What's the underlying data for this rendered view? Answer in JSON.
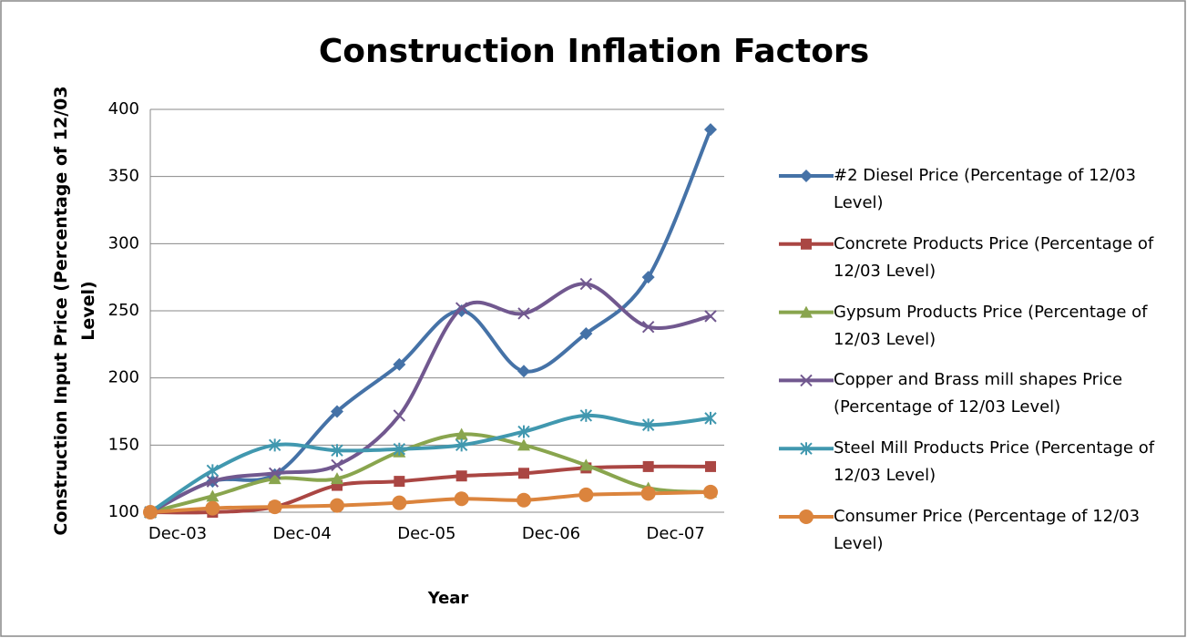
{
  "chart_data": {
    "type": "line",
    "title": "Construction Inflation Factors",
    "x_label": "Year",
    "y_label": "Construction Input Price (Percentage of 12/03 Level)",
    "categories": [
      "Dec-03",
      null,
      "Dec-04",
      null,
      "Dec-05",
      null,
      "Dec-06",
      null,
      "Dec-07",
      null
    ],
    "ylim": [
      100,
      400
    ],
    "yticks": [
      100,
      150,
      200,
      250,
      300,
      350,
      400
    ],
    "grid": true,
    "smooth": true,
    "legend": "right",
    "series": [
      {
        "name": "#2 Diesel Price (Percentage of 12/03 Level)",
        "color": "#4572a7",
        "marker": "diamond",
        "values": [
          100,
          123,
          128,
          175,
          210,
          250,
          205,
          233,
          275,
          385
        ]
      },
      {
        "name": "Concrete Products Price (Percentage of 12/03 Level)",
        "color": "#aa4643",
        "marker": "square",
        "values": [
          100,
          100,
          104,
          120,
          123,
          127,
          129,
          133,
          134,
          134
        ]
      },
      {
        "name": "Gypsum Products Price (Percentage of 12/03 Level)",
        "color": "#89a54e",
        "marker": "triangle",
        "values": [
          100,
          112,
          125,
          125,
          145,
          158,
          150,
          135,
          118,
          115
        ]
      },
      {
        "name": "Copper and Brass mill shapes Price (Percentage of 12/03 Level)",
        "color": "#71588f",
        "marker": "x",
        "values": [
          100,
          123,
          129,
          135,
          172,
          252,
          248,
          270,
          238,
          246
        ]
      },
      {
        "name": "Steel Mill Products Price (Percentage of 12/03 Level)",
        "color": "#4198af",
        "marker": "star",
        "values": [
          100,
          131,
          150,
          146,
          147,
          150,
          160,
          172,
          165,
          170
        ]
      },
      {
        "name": "Consumer Price (Percentage of 12/03 Level)",
        "color": "#db843d",
        "marker": "circle",
        "values": [
          100,
          103,
          104,
          105,
          107,
          110,
          109,
          113,
          114,
          115
        ]
      }
    ]
  }
}
